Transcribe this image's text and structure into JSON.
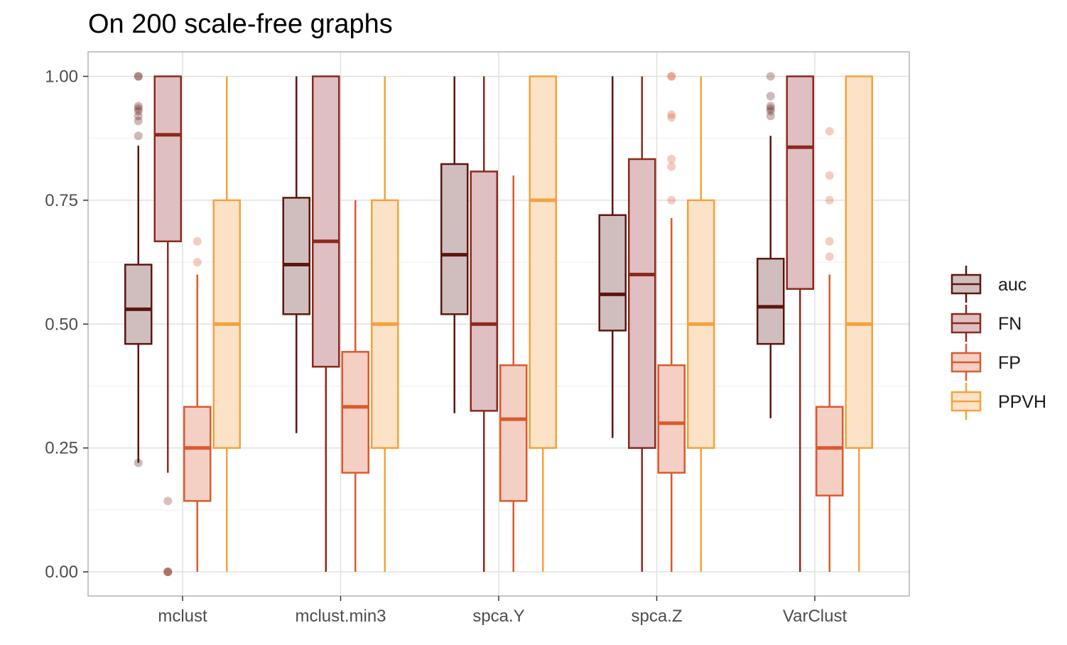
{
  "chart_data": {
    "type": "boxplot",
    "title": "On 200 scale-free graphs",
    "xlabel": "",
    "ylabel": "",
    "ylim": [
      -0.05,
      1.05
    ],
    "yticks": [
      "0.00",
      "0.25",
      "0.50",
      "0.75",
      "1.00"
    ],
    "ytick_values": [
      0,
      0.25,
      0.5,
      0.75,
      1.0
    ],
    "grid": true,
    "legend_position": "right",
    "categories": [
      "mclust",
      "mclust.min3",
      "spca.Y",
      "spca.Z",
      "VarClust"
    ],
    "series": [
      {
        "name": "auc",
        "color": "#5C1610",
        "fill": "#CFBEBD",
        "boxes": [
          {
            "min": 0.22,
            "q1": 0.46,
            "median": 0.53,
            "q3": 0.62,
            "max": 0.86,
            "outliers": [
              1.0,
              1.0,
              0.94,
              0.935,
              0.93,
              0.92,
              0.91,
              0.88,
              0.22
            ]
          },
          {
            "min": 0.28,
            "q1": 0.52,
            "median": 0.62,
            "q3": 0.755,
            "max": 1.0,
            "outliers": []
          },
          {
            "min": 0.32,
            "q1": 0.52,
            "median": 0.64,
            "q3": 0.823,
            "max": 1.0,
            "outliers": []
          },
          {
            "min": 0.27,
            "q1": 0.487,
            "median": 0.56,
            "q3": 0.72,
            "max": 1.0,
            "outliers": []
          },
          {
            "min": 0.31,
            "q1": 0.46,
            "median": 0.535,
            "q3": 0.632,
            "max": 0.88,
            "outliers": [
              1.0,
              0.96,
              0.94,
              0.935,
              0.93,
              0.92
            ]
          }
        ]
      },
      {
        "name": "FN",
        "color": "#8B2A1C",
        "fill": "#DFBFC1",
        "boxes": [
          {
            "min": 0.2,
            "q1": 0.667,
            "median": 0.882,
            "q3": 1.0,
            "max": 1.0,
            "outliers": [
              0.143,
              0.0,
              0.0,
              0.0
            ]
          },
          {
            "min": 0.0,
            "q1": 0.414,
            "median": 0.667,
            "q3": 1.0,
            "max": 1.0,
            "outliers": []
          },
          {
            "min": 0.0,
            "q1": 0.325,
            "median": 0.5,
            "q3": 0.808,
            "max": 1.0,
            "outliers": []
          },
          {
            "min": 0.0,
            "q1": 0.25,
            "median": 0.6,
            "q3": 0.833,
            "max": 1.0,
            "outliers": []
          },
          {
            "min": 0.0,
            "q1": 0.571,
            "median": 0.857,
            "q3": 1.0,
            "max": 1.0,
            "outliers": []
          }
        ]
      },
      {
        "name": "FP",
        "color": "#DC5A2C",
        "fill": "#F4CFC4",
        "boxes": [
          {
            "min": 0.0,
            "q1": 0.143,
            "median": 0.25,
            "q3": 0.333,
            "max": 0.6,
            "outliers": [
              0.667,
              0.625
            ]
          },
          {
            "min": 0.0,
            "q1": 0.2,
            "median": 0.333,
            "q3": 0.444,
            "max": 0.75,
            "outliers": []
          },
          {
            "min": 0.0,
            "q1": 0.143,
            "median": 0.308,
            "q3": 0.417,
            "max": 0.8,
            "outliers": []
          },
          {
            "min": 0.0,
            "q1": 0.2,
            "median": 0.3,
            "q3": 0.417,
            "max": 0.714,
            "outliers": [
              1.0,
              1.0,
              0.923,
              0.917,
              0.833,
              0.818,
              0.75
            ]
          },
          {
            "min": 0.0,
            "q1": 0.154,
            "median": 0.25,
            "q3": 0.333,
            "max": 0.6,
            "outliers": [
              0.889,
              0.8,
              0.75,
              0.667,
              0.636
            ]
          }
        ]
      },
      {
        "name": "PPVH",
        "color": "#F4A23C",
        "fill": "#FCE3C8",
        "boxes": [
          {
            "min": 0.0,
            "q1": 0.25,
            "median": 0.5,
            "q3": 0.75,
            "max": 1.0,
            "outliers": []
          },
          {
            "min": 0.0,
            "q1": 0.25,
            "median": 0.5,
            "q3": 0.75,
            "max": 1.0,
            "outliers": []
          },
          {
            "min": 0.0,
            "q1": 0.25,
            "median": 0.75,
            "q3": 1.0,
            "max": 1.0,
            "outliers": []
          },
          {
            "min": 0.0,
            "q1": 0.25,
            "median": 0.5,
            "q3": 0.75,
            "max": 1.0,
            "outliers": []
          },
          {
            "min": 0.0,
            "q1": 0.25,
            "median": 0.5,
            "q3": 1.0,
            "max": 1.0,
            "outliers": []
          }
        ]
      }
    ]
  }
}
